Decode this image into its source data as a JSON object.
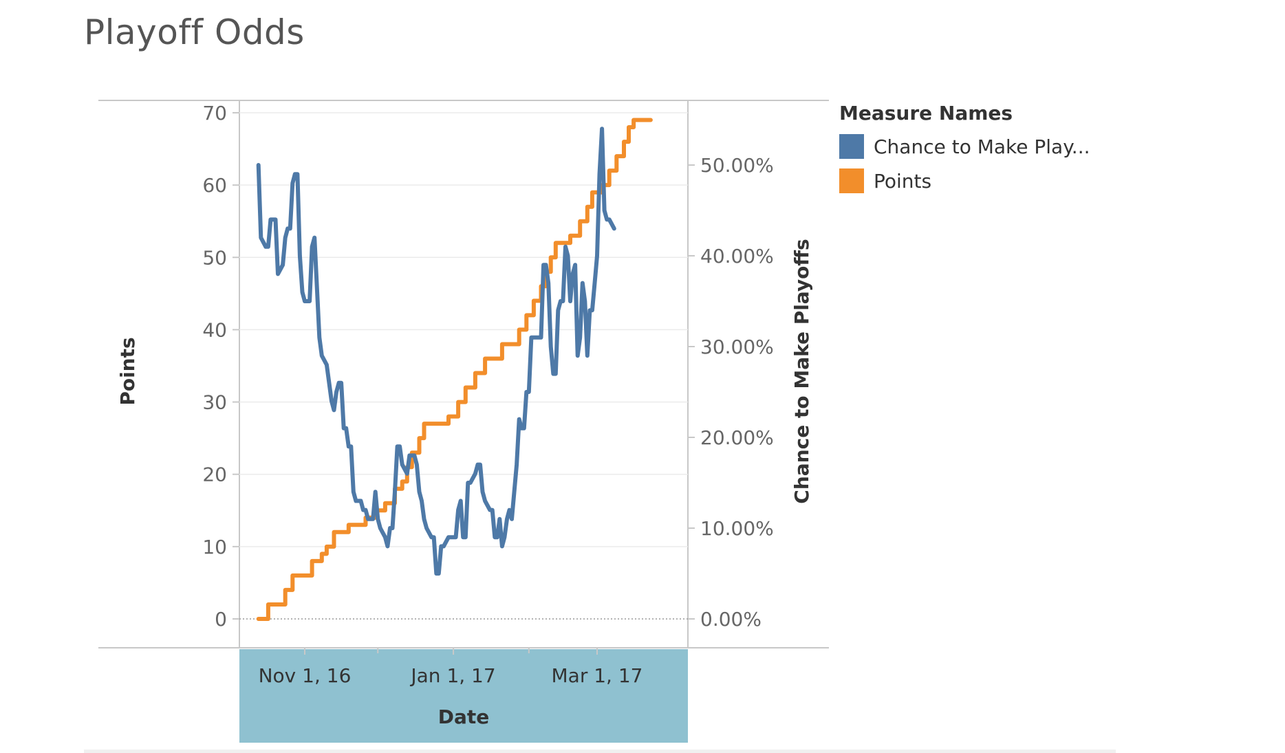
{
  "title": "Playoff Odds",
  "colors": {
    "chance": "#4e79a7",
    "points": "#f28e2b",
    "axis_band": "#8fc1d0",
    "grid": "#ebebeb",
    "axis_line": "#c8c8c8",
    "text": "#666666"
  },
  "legend": {
    "title": "Measure Names",
    "items": [
      {
        "label": "Chance to Make Play...",
        "color": "#4e79a7"
      },
      {
        "label": "Points",
        "color": "#f28e2b"
      }
    ]
  },
  "chart_data": {
    "type": "line",
    "title": "Playoff Odds",
    "xlabel": "Date",
    "ylabel_left": "Points",
    "ylabel_right": "Chance to Make Playoffs",
    "x_ticks": [
      "Nov 1, 16",
      "Jan 1, 17",
      "Mar 1, 17"
    ],
    "x_tick_dates": [
      "2016-11-01",
      "2017-01-01",
      "2017-03-01"
    ],
    "xlim": [
      "2016-10-13",
      "2017-04-09"
    ],
    "y_left_ticks": [
      "0",
      "10",
      "20",
      "30",
      "40",
      "50",
      "60",
      "70"
    ],
    "ylim_left": [
      0,
      70
    ],
    "y_right_ticks": [
      "0.00%",
      "10.00%",
      "20.00%",
      "30.00%",
      "40.00%",
      "50.00%"
    ],
    "ylim_right": [
      0,
      0.64
    ],
    "grid": true,
    "legend_position": "right",
    "series": [
      {
        "name": "Points",
        "axis": "left",
        "step": true,
        "points": [
          [
            "2016-10-13",
            0
          ],
          [
            "2016-10-17",
            2
          ],
          [
            "2016-10-24",
            4
          ],
          [
            "2016-10-27",
            6
          ],
          [
            "2016-11-04",
            8
          ],
          [
            "2016-11-08",
            9
          ],
          [
            "2016-11-10",
            10
          ],
          [
            "2016-11-13",
            12
          ],
          [
            "2016-11-19",
            13
          ],
          [
            "2016-11-26",
            14
          ],
          [
            "2016-11-30",
            15
          ],
          [
            "2016-12-04",
            16
          ],
          [
            "2016-12-08",
            18
          ],
          [
            "2016-12-11",
            19
          ],
          [
            "2016-12-13",
            21
          ],
          [
            "2016-12-15",
            23
          ],
          [
            "2016-12-18",
            25
          ],
          [
            "2016-12-20",
            27
          ],
          [
            "2016-12-30",
            28
          ],
          [
            "2017-01-03",
            30
          ],
          [
            "2017-01-06",
            32
          ],
          [
            "2017-01-10",
            34
          ],
          [
            "2017-01-14",
            36
          ],
          [
            "2017-01-21",
            38
          ],
          [
            "2017-01-28",
            40
          ],
          [
            "2017-01-31",
            42
          ],
          [
            "2017-02-03",
            44
          ],
          [
            "2017-02-06",
            46
          ],
          [
            "2017-02-08",
            48
          ],
          [
            "2017-02-10",
            50
          ],
          [
            "2017-02-12",
            52
          ],
          [
            "2017-02-18",
            53
          ],
          [
            "2017-02-22",
            55
          ],
          [
            "2017-02-25",
            57
          ],
          [
            "2017-02-27",
            59
          ],
          [
            "2017-03-03",
            60
          ],
          [
            "2017-03-06",
            62
          ],
          [
            "2017-03-09",
            64
          ],
          [
            "2017-03-12",
            66
          ],
          [
            "2017-03-14",
            68
          ],
          [
            "2017-03-16",
            69
          ],
          [
            "2017-03-23",
            69
          ]
        ]
      },
      {
        "name": "Chance to Make Play...",
        "axis": "right",
        "step": false,
        "points": [
          [
            "2016-10-13",
            0.5
          ],
          [
            "2016-10-14",
            0.42
          ],
          [
            "2016-10-16",
            0.41
          ],
          [
            "2016-10-17",
            0.41
          ],
          [
            "2016-10-18",
            0.44
          ],
          [
            "2016-10-20",
            0.44
          ],
          [
            "2016-10-21",
            0.38
          ],
          [
            "2016-10-23",
            0.39
          ],
          [
            "2016-10-24",
            0.42
          ],
          [
            "2016-10-25",
            0.43
          ],
          [
            "2016-10-26",
            0.43
          ],
          [
            "2016-10-27",
            0.48
          ],
          [
            "2016-10-28",
            0.49
          ],
          [
            "2016-10-29",
            0.49
          ],
          [
            "2016-10-30",
            0.4
          ],
          [
            "2016-10-31",
            0.36
          ],
          [
            "2016-11-01",
            0.35
          ],
          [
            "2016-11-03",
            0.35
          ],
          [
            "2016-11-04",
            0.41
          ],
          [
            "2016-11-05",
            0.42
          ],
          [
            "2016-11-07",
            0.31
          ],
          [
            "2016-11-08",
            0.29
          ],
          [
            "2016-11-10",
            0.28
          ],
          [
            "2016-11-12",
            0.24
          ],
          [
            "2016-11-13",
            0.23
          ],
          [
            "2016-11-14",
            0.25
          ],
          [
            "2016-11-15",
            0.26
          ],
          [
            "2016-11-16",
            0.26
          ],
          [
            "2016-11-17",
            0.21
          ],
          [
            "2016-11-18",
            0.21
          ],
          [
            "2016-11-19",
            0.19
          ],
          [
            "2016-11-20",
            0.19
          ],
          [
            "2016-11-21",
            0.14
          ],
          [
            "2016-11-22",
            0.13
          ],
          [
            "2016-11-24",
            0.13
          ],
          [
            "2016-11-25",
            0.12
          ],
          [
            "2016-11-26",
            0.12
          ],
          [
            "2016-11-27",
            0.11
          ],
          [
            "2016-11-29",
            0.11
          ],
          [
            "2016-11-30",
            0.14
          ],
          [
            "2016-12-01",
            0.11
          ],
          [
            "2016-12-02",
            0.1
          ],
          [
            "2016-12-04",
            0.09
          ],
          [
            "2016-12-05",
            0.08
          ],
          [
            "2016-12-06",
            0.1
          ],
          [
            "2016-12-07",
            0.1
          ],
          [
            "2016-12-08",
            0.14
          ],
          [
            "2016-12-09",
            0.19
          ],
          [
            "2016-12-10",
            0.19
          ],
          [
            "2016-12-11",
            0.17
          ],
          [
            "2016-12-13",
            0.16
          ],
          [
            "2016-12-14",
            0.18
          ],
          [
            "2016-12-15",
            0.18
          ],
          [
            "2016-12-16",
            0.18
          ],
          [
            "2016-12-17",
            0.17
          ],
          [
            "2016-12-18",
            0.14
          ],
          [
            "2016-12-19",
            0.13
          ],
          [
            "2016-12-20",
            0.11
          ],
          [
            "2016-12-21",
            0.1
          ],
          [
            "2016-12-23",
            0.09
          ],
          [
            "2016-12-24",
            0.09
          ],
          [
            "2016-12-25",
            0.05
          ],
          [
            "2016-12-26",
            0.05
          ],
          [
            "2016-12-27",
            0.08
          ],
          [
            "2016-12-28",
            0.08
          ],
          [
            "2016-12-30",
            0.09
          ],
          [
            "2017-01-01",
            0.09
          ],
          [
            "2017-01-02",
            0.09
          ],
          [
            "2017-01-03",
            0.12
          ],
          [
            "2017-01-04",
            0.13
          ],
          [
            "2017-01-05",
            0.09
          ],
          [
            "2017-01-06",
            0.09
          ],
          [
            "2017-01-07",
            0.15
          ],
          [
            "2017-01-08",
            0.15
          ],
          [
            "2017-01-10",
            0.16
          ],
          [
            "2017-01-11",
            0.17
          ],
          [
            "2017-01-12",
            0.17
          ],
          [
            "2017-01-13",
            0.14
          ],
          [
            "2017-01-14",
            0.13
          ],
          [
            "2017-01-16",
            0.12
          ],
          [
            "2017-01-17",
            0.12
          ],
          [
            "2017-01-18",
            0.09
          ],
          [
            "2017-01-19",
            0.09
          ],
          [
            "2017-01-20",
            0.11
          ],
          [
            "2017-01-21",
            0.08
          ],
          [
            "2017-01-22",
            0.09
          ],
          [
            "2017-01-23",
            0.11
          ],
          [
            "2017-01-24",
            0.12
          ],
          [
            "2017-01-25",
            0.11
          ],
          [
            "2017-01-27",
            0.17
          ],
          [
            "2017-01-28",
            0.22
          ],
          [
            "2017-01-29",
            0.21
          ],
          [
            "2017-01-30",
            0.21
          ],
          [
            "2017-01-31",
            0.25
          ],
          [
            "2017-02-01",
            0.25
          ],
          [
            "2017-02-02",
            0.31
          ],
          [
            "2017-02-03",
            0.31
          ],
          [
            "2017-02-05",
            0.31
          ],
          [
            "2017-02-06",
            0.31
          ],
          [
            "2017-02-07",
            0.39
          ],
          [
            "2017-02-08",
            0.39
          ],
          [
            "2017-02-09",
            0.37
          ],
          [
            "2017-02-10",
            0.3
          ],
          [
            "2017-02-11",
            0.27
          ],
          [
            "2017-02-12",
            0.27
          ],
          [
            "2017-02-13",
            0.34
          ],
          [
            "2017-02-14",
            0.35
          ],
          [
            "2017-02-15",
            0.35
          ],
          [
            "2017-02-16",
            0.41
          ],
          [
            "2017-02-17",
            0.4
          ],
          [
            "2017-02-18",
            0.35
          ],
          [
            "2017-02-19",
            0.38
          ],
          [
            "2017-02-20",
            0.39
          ],
          [
            "2017-02-21",
            0.29
          ],
          [
            "2017-02-22",
            0.31
          ],
          [
            "2017-02-23",
            0.37
          ],
          [
            "2017-02-24",
            0.35
          ],
          [
            "2017-02-25",
            0.29
          ],
          [
            "2017-02-26",
            0.34
          ],
          [
            "2017-02-27",
            0.34
          ],
          [
            "2017-02-28",
            0.37
          ],
          [
            "2017-03-01",
            0.4
          ],
          [
            "2017-03-02",
            0.49
          ],
          [
            "2017-03-03",
            0.54
          ],
          [
            "2017-03-04",
            0.45
          ],
          [
            "2017-03-05",
            0.44
          ],
          [
            "2017-03-06",
            0.44
          ],
          [
            "2017-03-08",
            0.43
          ]
        ]
      }
    ]
  }
}
